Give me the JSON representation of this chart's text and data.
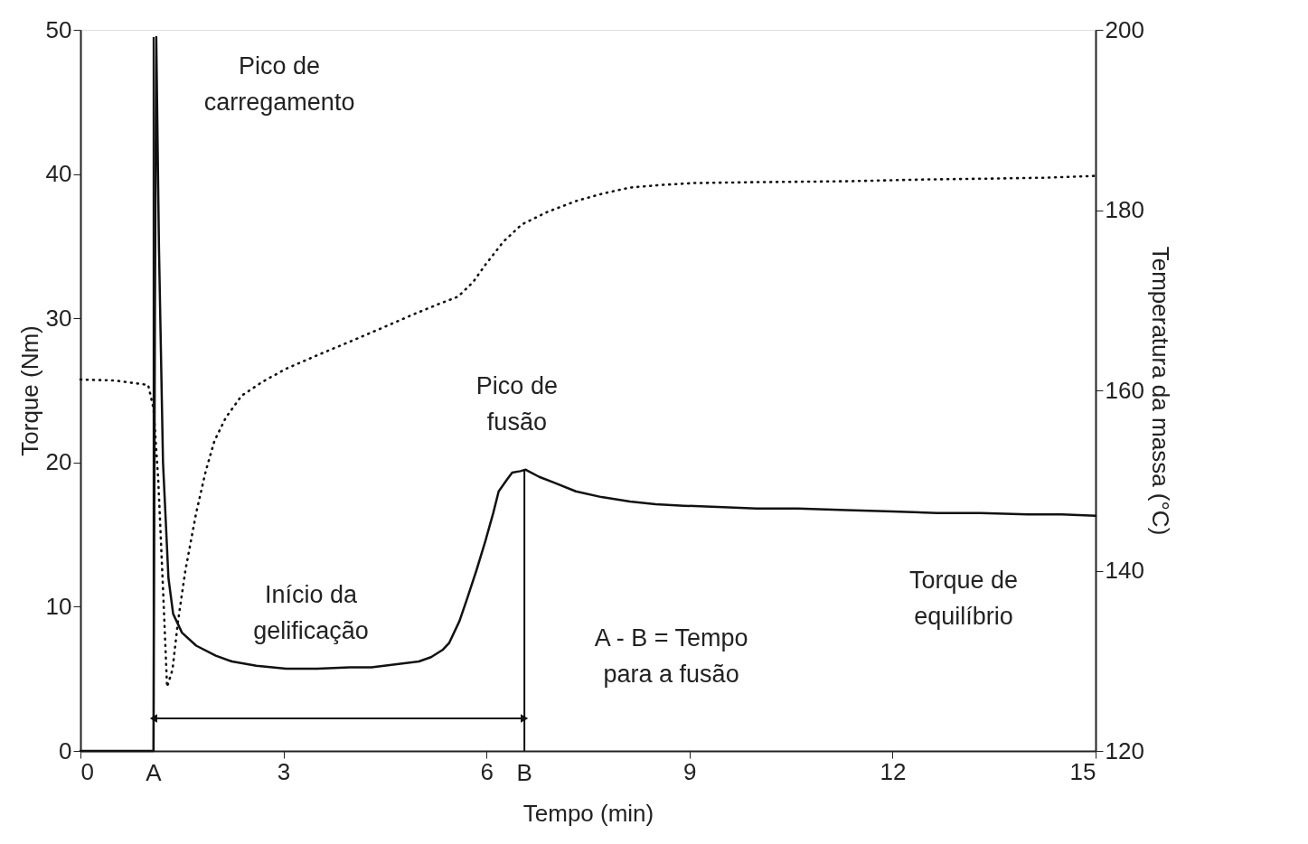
{
  "chart_data": {
    "type": "line",
    "xlabel": "Tempo (min)",
    "ylabel": "Torque (Nm)",
    "y2label": "Temperatura da massa (°C)",
    "xlim": [
      0,
      15
    ],
    "xticks": [
      0,
      3,
      6,
      9,
      12,
      15
    ],
    "ylim": [
      0,
      50
    ],
    "yticks": [
      0,
      10,
      20,
      30,
      40,
      50
    ],
    "y2lim": [
      120,
      200
    ],
    "y2ticks": [
      120,
      140,
      160,
      180,
      200
    ],
    "grid": false,
    "series": [
      {
        "color": "#111111",
        "line_style": "solid",
        "x": [
          0,
          1.08,
          1.1,
          1.12,
          1.16,
          1.22,
          1.3,
          1.37,
          1.5,
          1.71,
          2.0,
          2.24,
          2.6,
          3.04,
          3.5,
          3.98,
          4.3,
          4.65,
          5.0,
          5.18,
          5.35,
          5.45,
          5.6,
          5.71,
          5.85,
          5.98,
          6.1,
          6.18,
          6.3,
          6.38,
          6.5,
          6.58,
          6.78,
          7.0,
          7.32,
          7.7,
          8.12,
          8.5,
          8.92,
          9.5,
          9.99,
          10.6,
          11.32,
          12.0,
          12.66,
          13.3,
          14.0,
          14.5,
          15
        ],
        "values": [
          0,
          0,
          30,
          49.5,
          35,
          20,
          12,
          9.5,
          8.2,
          7.3,
          6.6,
          6.2,
          5.9,
          5.7,
          5.7,
          5.8,
          5.8,
          6.0,
          6.2,
          6.5,
          7.0,
          7.5,
          9.0,
          10.5,
          12.5,
          14.5,
          16.5,
          18,
          18.8,
          19.3,
          19.4,
          19.5,
          19.0,
          18.6,
          18.0,
          17.6,
          17.3,
          17.1,
          17.0,
          16.9,
          16.8,
          16.8,
          16.7,
          16.6,
          16.5,
          16.5,
          16.4,
          16.4,
          16.3
        ]
      },
      {
        "color": "#111111",
        "line_style": "dotted",
        "axis": "y2",
        "x": [
          0,
          0.5,
          1.0,
          1.08,
          1.15,
          1.22,
          1.28,
          1.36,
          1.44,
          1.55,
          1.71,
          1.85,
          1.98,
          2.15,
          2.38,
          2.7,
          3.04,
          3.5,
          3.98,
          4.45,
          4.91,
          5.3,
          5.58,
          5.8,
          5.98,
          6.25,
          6.52,
          6.9,
          7.32,
          7.7,
          8.12,
          8.6,
          9.06,
          10.0,
          11.32,
          12.5,
          13.5,
          14.3,
          15
        ],
        "values": [
          161.2,
          161.1,
          160.6,
          158,
          150,
          138,
          127.1,
          129,
          134.3,
          140,
          146.4,
          151,
          154.4,
          157,
          159.4,
          161,
          162.4,
          163.9,
          165.4,
          166.9,
          168.4,
          169.6,
          170.4,
          172,
          173.9,
          176.5,
          178.4,
          179.8,
          181,
          181.8,
          182.5,
          182.8,
          183,
          183.1,
          183.2,
          183.4,
          183.5,
          183.6,
          183.8
        ]
      }
    ],
    "ref_lines": [
      {
        "axis": "x",
        "value": 1.08,
        "label": "A"
      },
      {
        "axis": "x",
        "value": 6.56,
        "label": "B"
      }
    ],
    "annotations": [
      "Pico de\ncarregamento",
      "Pico de\nfusão",
      "Início da\ngelificação",
      "A - B = Tempo\npara a fusão",
      "Torque de\nequilíbrio"
    ]
  }
}
